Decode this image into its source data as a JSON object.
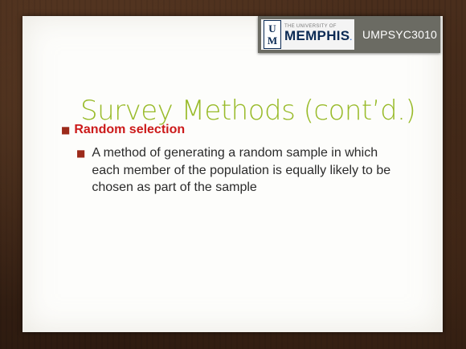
{
  "slide": {
    "logo": {
      "mark_top": "U",
      "mark_bottom": "M",
      "small_text": "THE UNIVERSITY OF",
      "big_text": "MEMPHIS",
      "brand_color": "#0b2a54"
    },
    "course_code": "UMPSYC3010",
    "title": "Survey Methods (cont’d.)",
    "bullets": [
      {
        "text": "Random selection",
        "sub": [
          "A method of generating a random sample in which each member of the population is equally likely to be chosen as part of the sample"
        ]
      }
    ],
    "colors": {
      "title": "#99bb2a",
      "bullet_heading": "#cc1a1a",
      "badge_bg": "#6b6b63"
    },
    "icons": {
      "bullet_icon": "square-bullet-icon"
    }
  }
}
